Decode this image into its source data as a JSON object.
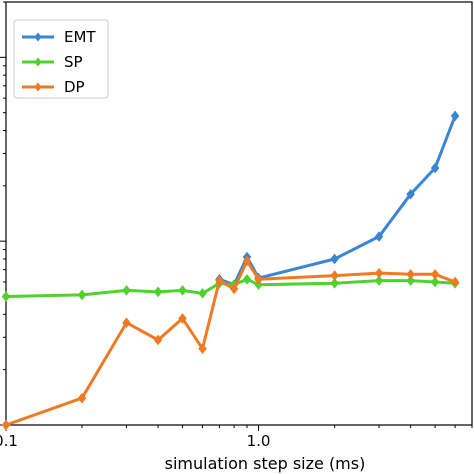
{
  "chart_data": {
    "type": "line",
    "xlabel": "simulation step size (ms)",
    "ylabel": "",
    "x_scale": "log",
    "y_scale": "log",
    "xlim": [
      0.1,
      7.0
    ],
    "ylim": [
      0.0001,
      0.02
    ],
    "x_tick_labels": [
      {
        "value": 0.1,
        "label": "0.1"
      },
      {
        "value": 1.0,
        "label": "1.0"
      }
    ],
    "legend_position": "top-left",
    "grid": false,
    "series": [
      {
        "name": "EMT",
        "color": "#3a85d4",
        "x": [
          0.7,
          0.8,
          0.9,
          1.0,
          2.0,
          3.0,
          4.0,
          5.0,
          6.0
        ],
        "y": [
          0.00062,
          0.00058,
          0.00082,
          0.00063,
          0.0008,
          0.00106,
          0.0018,
          0.0025,
          0.0048
        ]
      },
      {
        "name": "SP",
        "color": "#4fd12f",
        "x": [
          0.1,
          0.2,
          0.3,
          0.4,
          0.5,
          0.6,
          0.7,
          0.8,
          0.9,
          1.0,
          2.0,
          3.0,
          4.0,
          5.0,
          6.0
        ],
        "y": [
          0.0005,
          0.00051,
          0.00054,
          0.00053,
          0.00054,
          0.00052,
          0.00059,
          0.00058,
          0.00062,
          0.00058,
          0.00059,
          0.00061,
          0.00061,
          0.0006,
          0.00059
        ]
      },
      {
        "name": "DP",
        "color": "#f07a24",
        "x": [
          0.1,
          0.2,
          0.3,
          0.4,
          0.5,
          0.6,
          0.7,
          0.8,
          0.9,
          1.0,
          2.0,
          3.0,
          4.0,
          5.0,
          6.0
        ],
        "y": [
          0.0001,
          0.00014,
          0.00036,
          0.00029,
          0.00038,
          0.00026,
          0.00061,
          0.00055,
          0.00078,
          0.00062,
          0.00065,
          0.00067,
          0.00066,
          0.00066,
          0.0006
        ]
      }
    ]
  }
}
